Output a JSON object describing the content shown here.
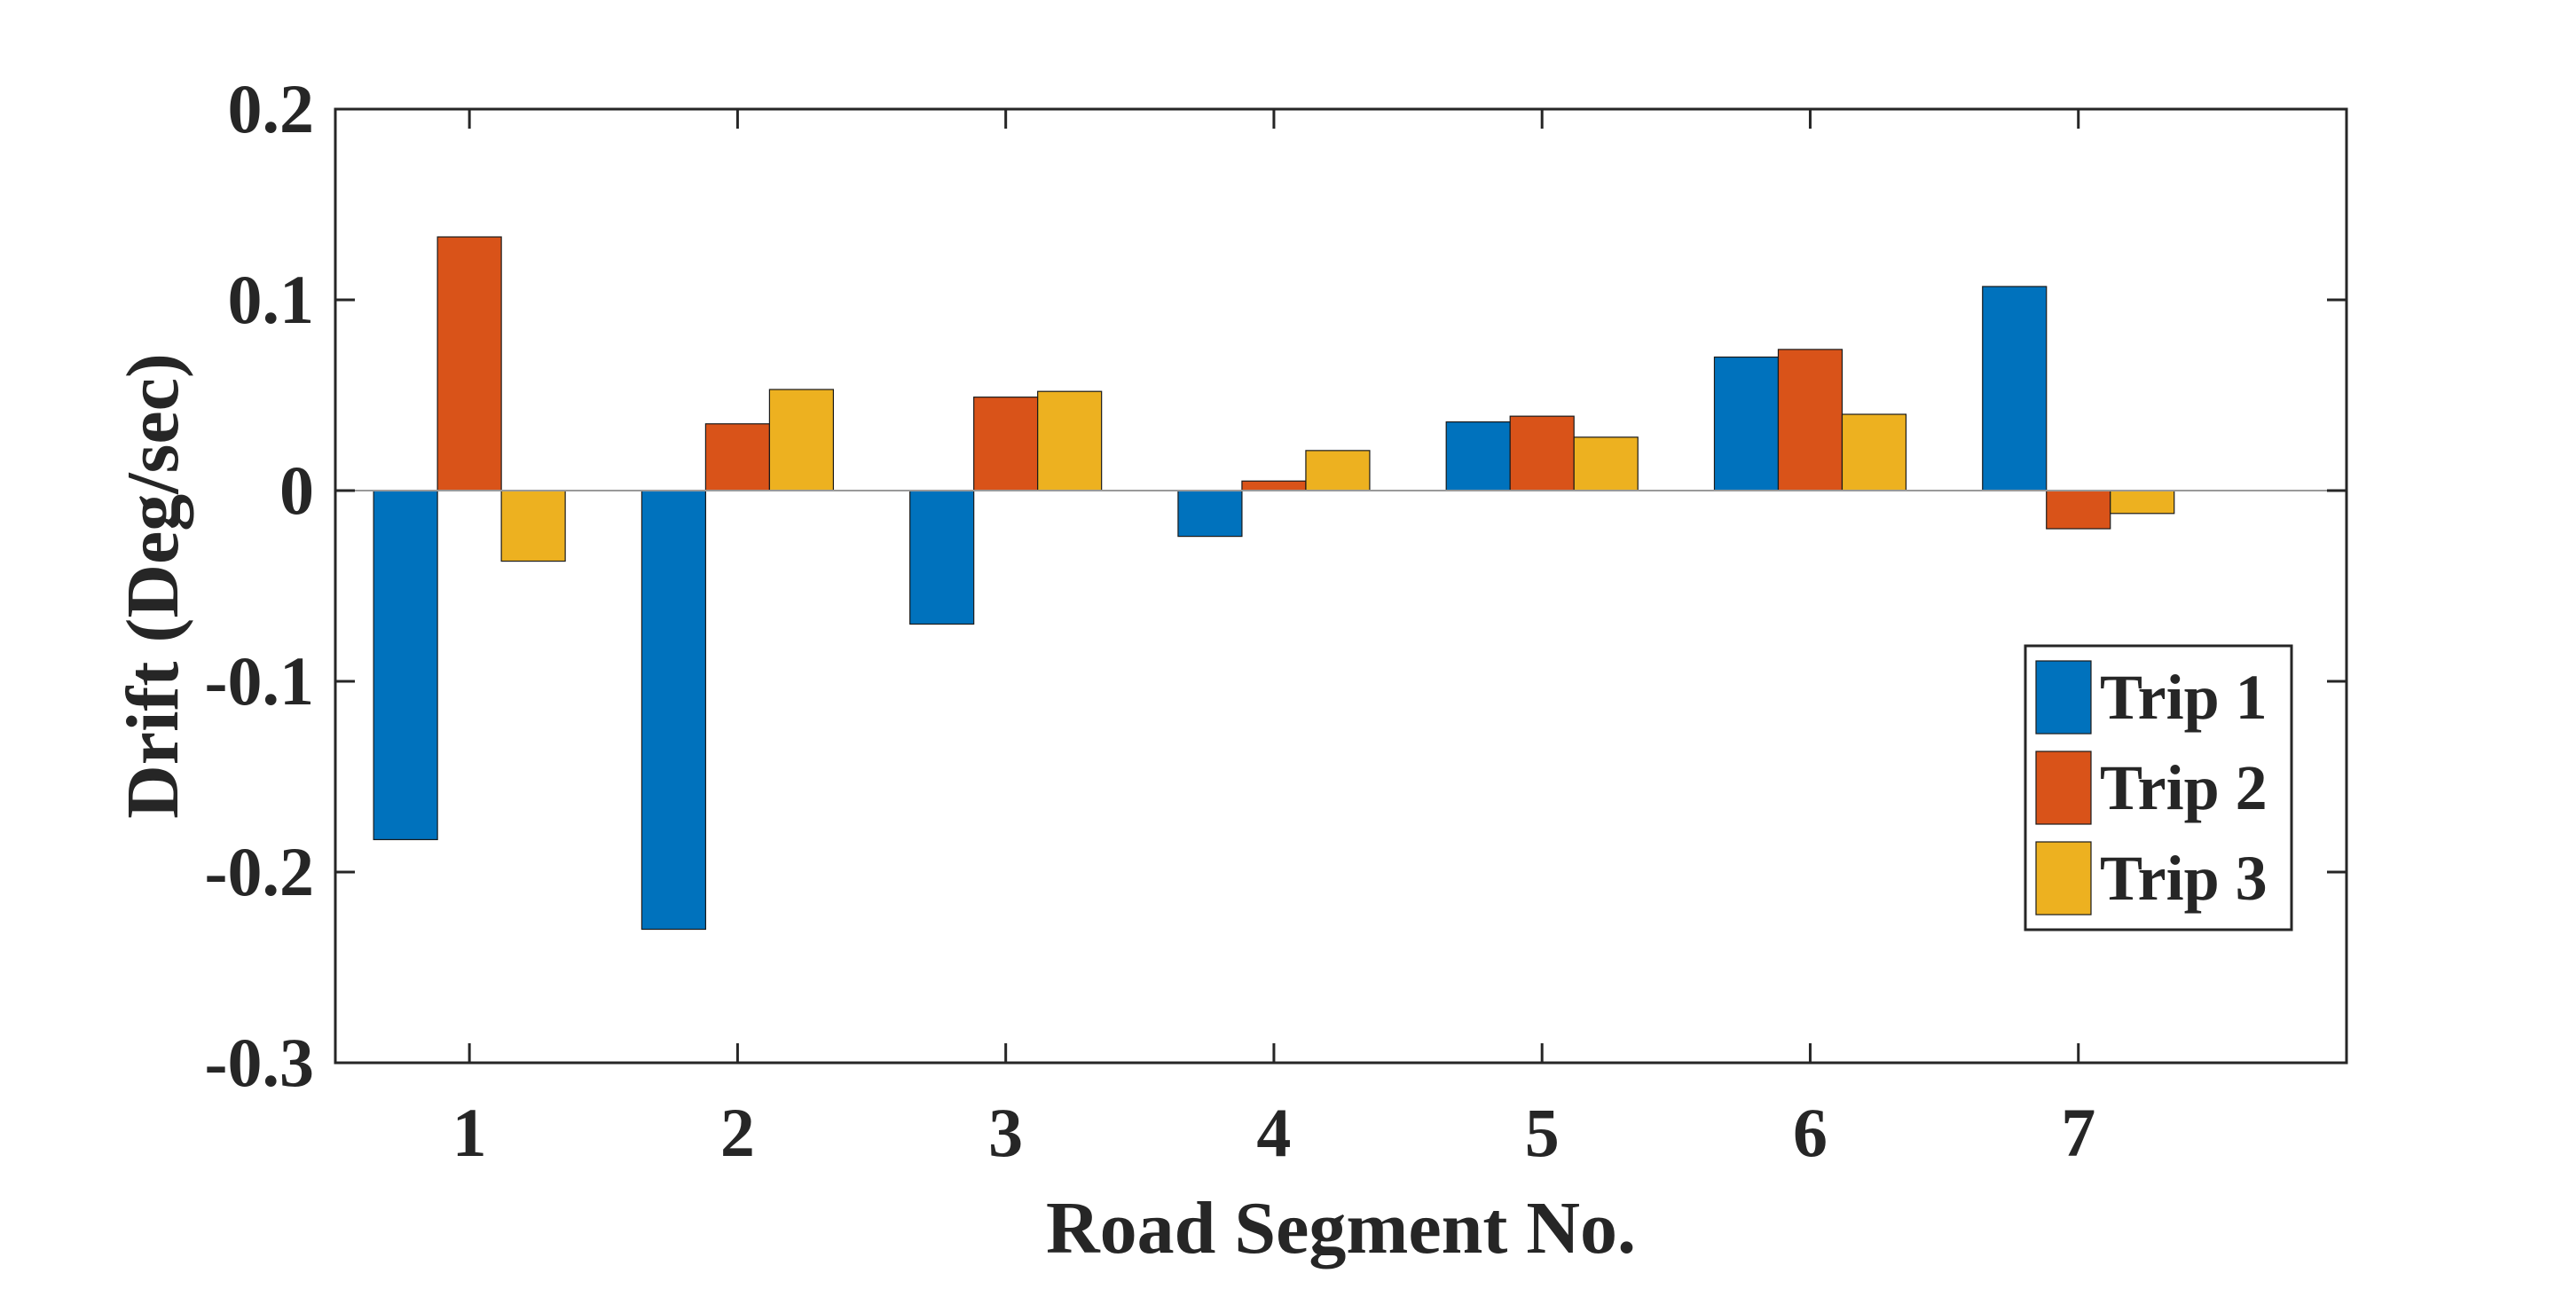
{
  "chart_data": {
    "type": "bar",
    "title": "",
    "xlabel": "Road Segment No.",
    "ylabel": "Drift (Deg/sec)",
    "categories": [
      "1",
      "2",
      "3",
      "4",
      "5",
      "6",
      "7"
    ],
    "ylim": [
      -0.3,
      0.2
    ],
    "yticks": [
      0.2,
      0.1,
      0,
      -0.1,
      -0.2,
      -0.3
    ],
    "ytick_labels": [
      "0.2",
      "0.1",
      "0",
      "-0.1",
      "-0.2",
      "-0.3"
    ],
    "grid": false,
    "legend_position": "bottom-right",
    "series": [
      {
        "name": "Trip 1",
        "color": "#0072BD",
        "values": [
          -0.183,
          -0.23,
          -0.07,
          -0.024,
          0.036,
          0.07,
          0.107
        ]
      },
      {
        "name": "Trip 2",
        "color": "#D95319",
        "values": [
          0.133,
          0.035,
          0.049,
          0.005,
          0.039,
          0.074,
          -0.02
        ]
      },
      {
        "name": "Trip 3",
        "color": "#EDB120",
        "values": [
          -0.037,
          0.053,
          0.052,
          0.021,
          0.028,
          0.04,
          -0.012
        ]
      }
    ]
  }
}
